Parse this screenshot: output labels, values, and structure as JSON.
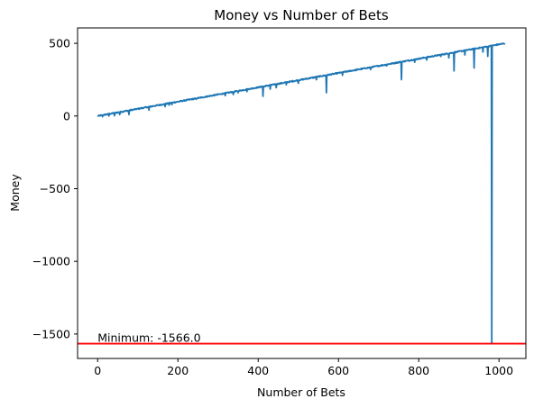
{
  "chart_data": {
    "type": "line",
    "title": "Money vs Number of Bets",
    "xlabel": "Number of Bets",
    "ylabel": "Money",
    "xlim": [
      -50,
      1067
    ],
    "ylim": [
      -1668,
      606
    ],
    "xticks": [
      0,
      200,
      400,
      600,
      800,
      1000
    ],
    "xtick_labels": [
      "0",
      "200",
      "400",
      "600",
      "800",
      "1000"
    ],
    "yticks": [
      500,
      0,
      -500,
      -1000,
      -1500
    ],
    "ytick_labels": [
      "500",
      "0",
      "−500",
      "−1000",
      "−1500"
    ],
    "grid": false,
    "series": [
      {
        "color": "#1f77b4",
        "trend": {
          "x_start": 0,
          "y_start": 0,
          "x_end": 1015,
          "y_end": 500
        },
        "dips": [
          [
            12,
            -5
          ],
          [
            28,
            0
          ],
          [
            42,
            2
          ],
          [
            55,
            10
          ],
          [
            78,
            10
          ],
          [
            128,
            40
          ],
          [
            168,
            65
          ],
          [
            178,
            75
          ],
          [
            185,
            78
          ],
          [
            245,
            115
          ],
          [
            265,
            130
          ],
          [
            318,
            140
          ],
          [
            338,
            148
          ],
          [
            350,
            160
          ],
          [
            372,
            168
          ],
          [
            412,
            135
          ],
          [
            430,
            185
          ],
          [
            445,
            195
          ],
          [
            470,
            215
          ],
          [
            500,
            225
          ],
          [
            545,
            250
          ],
          [
            570,
            160
          ],
          [
            610,
            280
          ],
          [
            680,
            320
          ],
          [
            720,
            345
          ],
          [
            757,
            250
          ],
          [
            790,
            370
          ],
          [
            820,
            385
          ],
          [
            855,
            410
          ],
          [
            875,
            400
          ],
          [
            888,
            310
          ],
          [
            915,
            420
          ],
          [
            938,
            330
          ],
          [
            960,
            440
          ],
          [
            972,
            410
          ],
          [
            982,
            -1566
          ]
        ]
      }
    ],
    "reference_line": {
      "y": -1566,
      "color": "#ff0000"
    },
    "annotation": {
      "text": "Minimum: -1566.0",
      "x": 0,
      "y": -1566
    }
  }
}
